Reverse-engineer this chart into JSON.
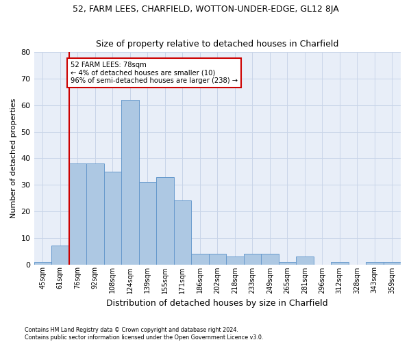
{
  "title1": "52, FARM LEES, CHARFIELD, WOTTON-UNDER-EDGE, GL12 8JA",
  "title2": "Size of property relative to detached houses in Charfield",
  "xlabel": "Distribution of detached houses by size in Charfield",
  "ylabel": "Number of detached properties",
  "categories": [
    "45sqm",
    "61sqm",
    "76sqm",
    "92sqm",
    "108sqm",
    "124sqm",
    "139sqm",
    "155sqm",
    "171sqm",
    "186sqm",
    "202sqm",
    "218sqm",
    "233sqm",
    "249sqm",
    "265sqm",
    "281sqm",
    "296sqm",
    "312sqm",
    "328sqm",
    "343sqm",
    "359sqm"
  ],
  "values": [
    1,
    7,
    38,
    38,
    35,
    62,
    31,
    33,
    24,
    4,
    4,
    3,
    4,
    4,
    1,
    3,
    0,
    1,
    0,
    1,
    1
  ],
  "bar_color": "#adc8e3",
  "bar_edge_color": "#6699cc",
  "vline_color": "#cc0000",
  "annotation_text": "52 FARM LEES: 78sqm\n← 4% of detached houses are smaller (10)\n96% of semi-detached houses are larger (238) →",
  "annotation_box_edgecolor": "#cc0000",
  "ylim": [
    0,
    80
  ],
  "yticks": [
    0,
    10,
    20,
    30,
    40,
    50,
    60,
    70,
    80
  ],
  "grid_color": "#c8d4e8",
  "bg_color": "#e8eef8",
  "footnote1": "Contains HM Land Registry data © Crown copyright and database right 2024.",
  "footnote2": "Contains public sector information licensed under the Open Government Licence v3.0."
}
